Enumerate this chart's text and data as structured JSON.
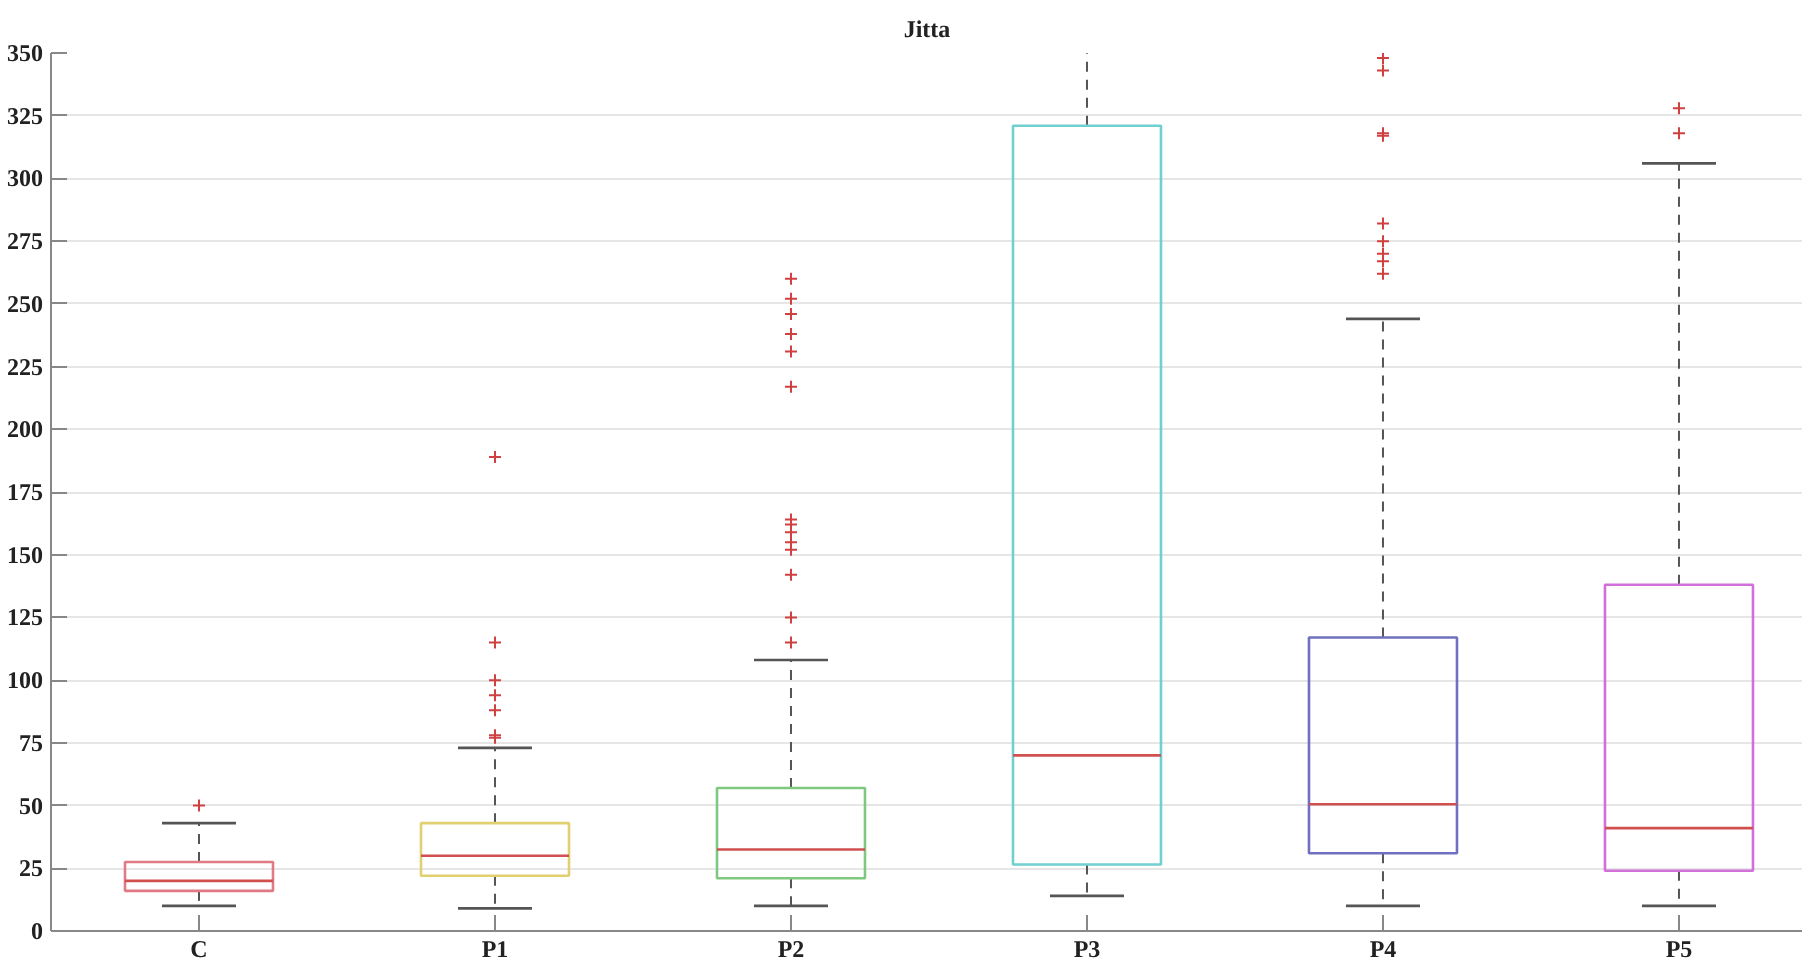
{
  "chart_data": {
    "type": "box",
    "title": "Jitta",
    "categories": [
      "C",
      "P1",
      "P2",
      "P3",
      "P4",
      "P5"
    ],
    "colors": [
      "#e07a85",
      "#e0d070",
      "#80c880",
      "#70d0d0",
      "#7070c0",
      "#d070d8"
    ],
    "boxes": [
      {
        "low": 10,
        "q1": 16,
        "median": 20,
        "q3": 27.5,
        "high": 43,
        "outliers": [
          50
        ]
      },
      {
        "low": 9,
        "q1": 22,
        "median": 30,
        "q3": 43,
        "high": 73,
        "outliers": [
          77,
          78,
          88,
          94,
          100,
          115,
          189
        ]
      },
      {
        "low": 10,
        "q1": 21,
        "median": 32.5,
        "q3": 57,
        "high": 108,
        "outliers": [
          115,
          125,
          142,
          152,
          155,
          159,
          162,
          164,
          217,
          231,
          238,
          246,
          252,
          260
        ]
      },
      {
        "low": 14,
        "q1": 26.5,
        "median": 70,
        "q3": 321,
        "high": 350
      },
      {
        "low": 10,
        "q1": 31,
        "median": 50.5,
        "q3": 117,
        "high": 244,
        "outliers": [
          262,
          267,
          270,
          275,
          282,
          317,
          318,
          343,
          348
        ]
      },
      {
        "low": 10,
        "q1": 24,
        "median": 41,
        "q3": 138,
        "high": 306,
        "outliers": [
          318,
          328
        ]
      }
    ],
    "ylim": [
      0,
      350
    ],
    "yticks": [
      0,
      25,
      50,
      75,
      100,
      125,
      150,
      175,
      200,
      225,
      250,
      275,
      300,
      325,
      350
    ],
    "grid": "y",
    "marker": "cross",
    "line_style": "dashed"
  }
}
